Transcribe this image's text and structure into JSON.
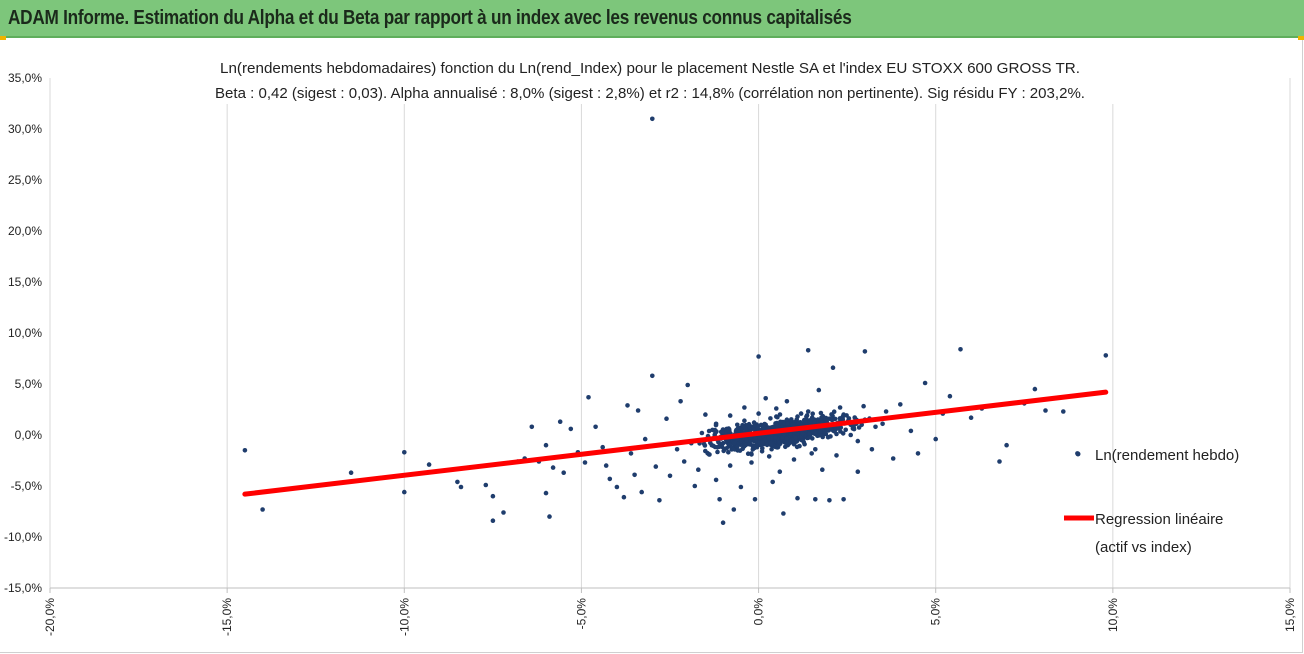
{
  "header": {
    "title": "ADAM Informe. Estimation du Alpha et du Beta par rapport à un index avec les revenus connus capitalisés"
  },
  "chart_data": {
    "type": "scatter",
    "title_line1": "Ln(rendements hebdomadaires) fonction du Ln(rend_Index) pour le placement Nestle SA et l'index EU STOXX 600 GROSS TR.",
    "title_line2": "Beta : 0,42 (sigest : 0,03). Alpha annualisé : 8,0% (sigest : 2,8%) et r2 : 14,8% (corrélation non pertinente). Sig résidu FY : 203,2%.",
    "xlim": [
      -20,
      15
    ],
    "ylim": [
      -15,
      35
    ],
    "x_tick_labels": [
      "-20,0%",
      "-15,0%",
      "-10,0%",
      "-5,0%",
      "0,0%",
      "5,0%",
      "10,0%",
      "15,0%"
    ],
    "y_tick_labels": [
      "35,0%",
      "30,0%",
      "25,0%",
      "20,0%",
      "15,0%",
      "10,0%",
      "5,0%",
      "0,0%",
      "-5,0%",
      "-10,0%",
      "-15,0%"
    ],
    "grid": "vertical",
    "legend_position": "right",
    "series": [
      {
        "name": "Ln(rendement hebdo)",
        "color": "#1f3d6d",
        "points": [
          [
            -14.5,
            -1.5
          ],
          [
            -14.0,
            -7.3
          ],
          [
            -11.5,
            -3.7
          ],
          [
            -10.0,
            -1.7
          ],
          [
            -10.0,
            -5.6
          ],
          [
            -9.3,
            -2.9
          ],
          [
            -8.5,
            -4.6
          ],
          [
            -8.4,
            -5.1
          ],
          [
            -7.7,
            -4.9
          ],
          [
            -7.5,
            -6.0
          ],
          [
            -7.5,
            -8.4
          ],
          [
            -7.2,
            -7.6
          ],
          [
            -6.8,
            -2.6
          ],
          [
            -6.6,
            -2.3
          ],
          [
            -6.4,
            0.8
          ],
          [
            -6.2,
            -2.6
          ],
          [
            -6.0,
            -1.0
          ],
          [
            -6.0,
            -5.7
          ],
          [
            -5.9,
            -8.0
          ],
          [
            -5.8,
            -3.2
          ],
          [
            -5.6,
            1.3
          ],
          [
            -5.5,
            -3.7
          ],
          [
            -5.3,
            0.6
          ],
          [
            -5.1,
            -1.7
          ],
          [
            -4.9,
            -2.7
          ],
          [
            -4.8,
            3.7
          ],
          [
            -4.6,
            0.8
          ],
          [
            -4.4,
            -1.2
          ],
          [
            -4.3,
            -3.0
          ],
          [
            -4.2,
            -4.3
          ],
          [
            -4.0,
            -5.1
          ],
          [
            -3.8,
            -6.1
          ],
          [
            -3.7,
            2.9
          ],
          [
            -3.6,
            -1.8
          ],
          [
            -3.5,
            -3.9
          ],
          [
            -3.4,
            2.4
          ],
          [
            -3.3,
            -5.6
          ],
          [
            -3.2,
            -0.4
          ],
          [
            -3.0,
            31.0
          ],
          [
            -3.0,
            5.8
          ],
          [
            -2.9,
            -3.1
          ],
          [
            -2.8,
            -6.4
          ],
          [
            -2.6,
            1.6
          ],
          [
            -2.5,
            -4.0
          ],
          [
            -2.3,
            -1.4
          ],
          [
            -2.2,
            3.3
          ],
          [
            -2.1,
            -2.6
          ],
          [
            -2.0,
            4.9
          ],
          [
            -1.9,
            -0.8
          ],
          [
            -1.8,
            -5.0
          ],
          [
            -1.7,
            -3.4
          ],
          [
            -1.5,
            2.0
          ],
          [
            -1.4,
            -1.9
          ],
          [
            -1.3,
            0.5
          ],
          [
            -1.2,
            -4.4
          ],
          [
            -1.1,
            -6.3
          ],
          [
            -1.0,
            -8.6
          ],
          [
            -0.9,
            -1.3
          ],
          [
            -0.8,
            -3.0
          ],
          [
            -0.7,
            -7.3
          ],
          [
            -0.6,
            1.0
          ],
          [
            -0.5,
            -5.1
          ],
          [
            -0.4,
            2.7
          ],
          [
            -0.3,
            -0.6
          ],
          [
            -0.2,
            -2.7
          ],
          [
            -0.1,
            -6.3
          ],
          [
            0.0,
            7.7
          ],
          [
            0.1,
            -1.6
          ],
          [
            0.2,
            3.6
          ],
          [
            0.3,
            -2.1
          ],
          [
            0.4,
            -4.6
          ],
          [
            0.5,
            1.8
          ],
          [
            0.6,
            -3.6
          ],
          [
            0.7,
            -7.7
          ],
          [
            0.8,
            3.3
          ],
          [
            0.9,
            -0.5
          ],
          [
            1.0,
            -2.4
          ],
          [
            1.1,
            -6.2
          ],
          [
            1.2,
            2.1
          ],
          [
            1.3,
            -0.9
          ],
          [
            1.4,
            8.3
          ],
          [
            1.5,
            -1.8
          ],
          [
            1.6,
            -6.3
          ],
          [
            1.7,
            4.4
          ],
          [
            1.8,
            -3.4
          ],
          [
            1.9,
            0.1
          ],
          [
            2.0,
            -6.4
          ],
          [
            2.1,
            6.6
          ],
          [
            2.2,
            -2.0
          ],
          [
            2.3,
            2.7
          ],
          [
            2.4,
            -6.3
          ],
          [
            2.6,
            0.0
          ],
          [
            2.8,
            -3.6
          ],
          [
            3.0,
            8.2
          ],
          [
            3.2,
            -1.4
          ],
          [
            3.5,
            1.1
          ],
          [
            3.8,
            -2.3
          ],
          [
            4.0,
            3.0
          ],
          [
            4.3,
            0.4
          ],
          [
            4.5,
            -1.8
          ],
          [
            4.7,
            5.1
          ],
          [
            5.0,
            -0.4
          ],
          [
            5.2,
            2.1
          ],
          [
            5.4,
            3.8
          ],
          [
            5.7,
            8.4
          ],
          [
            6.0,
            1.7
          ],
          [
            6.3,
            2.6
          ],
          [
            6.8,
            -2.6
          ],
          [
            7.0,
            -1.0
          ],
          [
            7.5,
            3.1
          ],
          [
            7.8,
            4.5
          ],
          [
            8.1,
            2.4
          ],
          [
            8.6,
            2.3
          ],
          [
            9.0,
            -1.8
          ],
          [
            9.8,
            7.8
          ],
          [
            -1.6,
            0.2
          ],
          [
            -1.4,
            -0.3
          ],
          [
            -1.2,
            1.1
          ],
          [
            -1.0,
            -0.8
          ],
          [
            -0.9,
            0.6
          ],
          [
            -0.8,
            1.9
          ],
          [
            -0.7,
            -1.2
          ],
          [
            -0.6,
            0.3
          ],
          [
            -0.5,
            -0.4
          ],
          [
            -0.4,
            1.4
          ],
          [
            -0.3,
            0.8
          ],
          [
            -0.2,
            -1.9
          ],
          [
            -0.1,
            0.1
          ],
          [
            0.0,
            2.1
          ],
          [
            0.1,
            -0.6
          ],
          [
            0.2,
            1.0
          ],
          [
            0.3,
            0.4
          ],
          [
            0.4,
            -1.1
          ],
          [
            0.5,
            2.6
          ],
          [
            0.6,
            0.2
          ],
          [
            0.7,
            -0.3
          ],
          [
            0.8,
            1.5
          ],
          [
            0.9,
            0.9
          ],
          [
            1.0,
            -0.9
          ],
          [
            1.1,
            1.8
          ],
          [
            1.2,
            0.5
          ],
          [
            1.3,
            -0.2
          ],
          [
            1.4,
            2.3
          ],
          [
            1.5,
            0.7
          ],
          [
            1.6,
            -1.4
          ],
          [
            1.7,
            1.2
          ],
          [
            1.8,
            0.3
          ],
          [
            2.0,
            1.6
          ],
          [
            2.2,
            0.1
          ],
          [
            2.4,
            2.0
          ],
          [
            2.6,
            1.0
          ],
          [
            2.8,
            -0.6
          ],
          [
            3.0,
            1.5
          ],
          [
            3.3,
            0.8
          ],
          [
            3.6,
            2.3
          ]
        ]
      },
      {
        "name": "Regression linéaire (actif vs index)",
        "legend_line1": "Regression linéaire",
        "legend_line2": "(actif vs index)",
        "color": "#ff0000",
        "line": [
          [
            -14.5,
            -5.8
          ],
          [
            9.8,
            4.2
          ]
        ]
      }
    ]
  }
}
